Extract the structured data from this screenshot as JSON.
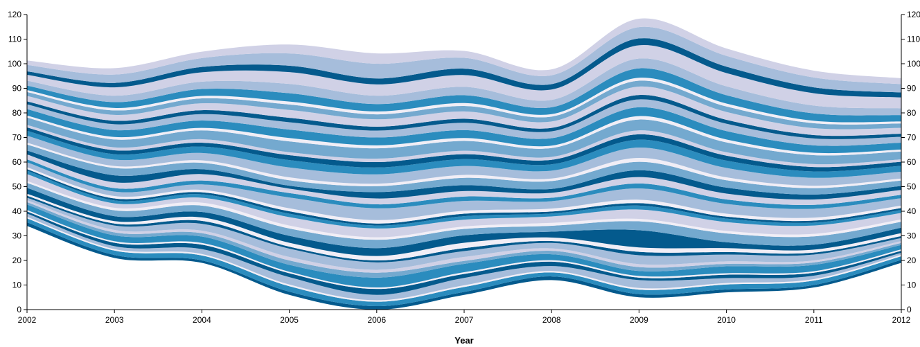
{
  "chart_data": {
    "type": "area",
    "subtype": "streamgraph",
    "title": "",
    "xlabel": "Year",
    "ylabel": "",
    "x": [
      2002,
      2003,
      2004,
      2005,
      2006,
      2007,
      2008,
      2009,
      2010,
      2011,
      2012
    ],
    "xlim": [
      2002,
      2012
    ],
    "ylim": [
      0,
      120
    ],
    "yticks": [
      0,
      10,
      20,
      30,
      40,
      50,
      60,
      70,
      80,
      90,
      100,
      110,
      120
    ],
    "grid": false,
    "legend": "none",
    "baseline": [
      34,
      21,
      19,
      6,
      0,
      6,
      12,
      5,
      7,
      9,
      19
    ],
    "series": [
      {
        "values": [
          1.5,
          1.2,
          1.0,
          1.3,
          1.4,
          1.2,
          1.5,
          1.3,
          1.2,
          1.0,
          1.2
        ],
        "color": "#045a8d"
      },
      {
        "values": [
          1.6,
          1.8,
          2.0,
          2.2,
          1.8,
          2.0,
          1.6,
          1.8,
          2.0,
          1.8,
          1.5
        ],
        "color": "#2b8cbe"
      },
      {
        "values": [
          0.6,
          0.6,
          0.6,
          0.7,
          0.6,
          0.7,
          0.6,
          0.7,
          0.6,
          0.6,
          0.6
        ],
        "color": "#f1eef6"
      },
      {
        "values": [
          1.4,
          1.2,
          2.0,
          3.0,
          2.2,
          3.0,
          2.0,
          3.2,
          2.0,
          1.4,
          0.8
        ],
        "color": "#a6bddb"
      },
      {
        "values": [
          0.8,
          1.4,
          1.8,
          1.6,
          2.4,
          1.6,
          1.8,
          1.0,
          1.4,
          1.2,
          0.8
        ],
        "color": "#045a8d"
      },
      {
        "values": [
          0.6,
          0.6,
          0.7,
          0.6,
          0.6,
          0.7,
          0.6,
          0.7,
          0.6,
          0.6,
          0.6
        ],
        "color": "#f1eef6"
      },
      {
        "values": [
          2.2,
          2.4,
          2.6,
          2.8,
          4.0,
          3.4,
          2.4,
          2.0,
          2.8,
          2.6,
          1.8
        ],
        "color": "#2b8cbe"
      },
      {
        "values": [
          1.0,
          1.2,
          1.4,
          1.8,
          2.0,
          1.2,
          1.4,
          1.6,
          1.0,
          1.0,
          0.8
        ],
        "color": "#74a9cf"
      },
      {
        "values": [
          0.8,
          1.0,
          1.0,
          1.4,
          1.2,
          1.6,
          1.0,
          1.2,
          1.0,
          0.8,
          0.8
        ],
        "color": "#d0d1e6"
      },
      {
        "values": [
          1.0,
          1.8,
          2.8,
          3.4,
          3.0,
          2.4,
          2.2,
          3.6,
          2.8,
          2.4,
          1.2
        ],
        "color": "#a6bddb"
      },
      {
        "values": [
          0.8,
          0.8,
          1.2,
          0.8,
          0.8,
          1.2,
          0.8,
          1.4,
          1.0,
          0.8,
          0.8
        ],
        "color": "#045a8d"
      },
      {
        "values": [
          0.8,
          1.0,
          1.4,
          1.6,
          1.8,
          2.2,
          1.4,
          1.8,
          1.6,
          1.2,
          1.2
        ],
        "color": "#f1eef6"
      },
      {
        "values": [
          2.4,
          2.0,
          2.2,
          2.8,
          3.2,
          3.0,
          2.4,
          7.0,
          2.4,
          2.0,
          2.2
        ],
        "color": "#045a8d"
      },
      {
        "values": [
          2.0,
          2.4,
          2.6,
          3.0,
          3.4,
          2.6,
          2.4,
          3.6,
          3.6,
          3.4,
          2.4
        ],
        "color": "#74a9cf"
      },
      {
        "values": [
          0.8,
          1.0,
          1.2,
          1.2,
          1.0,
          1.0,
          1.2,
          1.0,
          1.0,
          1.0,
          1.0
        ],
        "color": "#f1eef6"
      },
      {
        "values": [
          2.8,
          1.8,
          2.0,
          3.4,
          3.6,
          2.8,
          2.6,
          3.8,
          3.6,
          3.4,
          2.6
        ],
        "color": "#d0d1e6"
      },
      {
        "values": [
          1.4,
          1.2,
          1.4,
          1.4,
          1.2,
          1.4,
          1.2,
          1.6,
          1.4,
          1.2,
          1.2
        ],
        "color": "#2b8cbe"
      },
      {
        "values": [
          0.6,
          0.8,
          0.8,
          1.0,
          0.8,
          1.0,
          0.8,
          1.0,
          0.8,
          0.8,
          0.8
        ],
        "color": "#045a8d"
      },
      {
        "values": [
          0.8,
          1.0,
          1.0,
          1.2,
          1.4,
          1.2,
          1.2,
          1.4,
          1.2,
          1.2,
          1.0
        ],
        "color": "#f1eef6"
      },
      {
        "values": [
          2.0,
          1.8,
          2.2,
          4.4,
          4.8,
          4.0,
          3.0,
          4.6,
          4.0,
          3.6,
          3.0
        ],
        "color": "#a6bddb"
      },
      {
        "values": [
          1.2,
          1.4,
          1.6,
          1.8,
          1.6,
          1.8,
          1.4,
          2.0,
          1.8,
          1.6,
          1.4
        ],
        "color": "#2b8cbe"
      },
      {
        "values": [
          2.0,
          2.4,
          2.6,
          1.8,
          2.4,
          2.2,
          2.0,
          2.6,
          2.4,
          2.2,
          2.0
        ],
        "color": "#d0d1e6"
      },
      {
        "values": [
          1.6,
          2.8,
          2.0,
          1.2,
          2.6,
          2.4,
          1.6,
          2.8,
          2.4,
          2.0,
          1.6
        ],
        "color": "#045a8d"
      },
      {
        "values": [
          2.4,
          3.0,
          2.6,
          2.2,
          2.4,
          3.0,
          3.2,
          3.4,
          3.0,
          2.6,
          2.2
        ],
        "color": "#74a9cf"
      },
      {
        "values": [
          0.8,
          0.8,
          1.0,
          1.2,
          1.0,
          1.2,
          1.0,
          1.6,
          1.2,
          1.0,
          0.8
        ],
        "color": "#f1eef6"
      },
      {
        "values": [
          2.8,
          2.6,
          3.0,
          4.0,
          3.8,
          3.6,
          3.2,
          4.2,
          3.8,
          3.2,
          2.8
        ],
        "color": "#a6bddb"
      },
      {
        "values": [
          2.0,
          2.2,
          2.6,
          3.0,
          2.8,
          2.8,
          2.6,
          3.2,
          3.0,
          2.6,
          2.4
        ],
        "color": "#2b8cbe"
      },
      {
        "values": [
          1.4,
          1.6,
          1.6,
          2.0,
          2.2,
          2.0,
          1.8,
          2.2,
          2.0,
          1.8,
          1.6
        ],
        "color": "#045a8d"
      },
      {
        "values": [
          1.0,
          1.2,
          1.4,
          1.2,
          1.4,
          1.4,
          1.2,
          1.6,
          1.4,
          1.2,
          1.0
        ],
        "color": "#d0d1e6"
      },
      {
        "values": [
          3.0,
          3.2,
          3.6,
          4.4,
          4.2,
          4.0,
          3.6,
          4.4,
          4.0,
          3.6,
          3.2
        ],
        "color": "#74a9cf"
      },
      {
        "values": [
          0.8,
          1.0,
          1.0,
          1.4,
          1.2,
          1.2,
          1.0,
          1.4,
          1.2,
          1.0,
          0.8
        ],
        "color": "#f1eef6"
      },
      {
        "values": [
          2.6,
          2.8,
          3.0,
          3.4,
          3.2,
          3.2,
          3.0,
          3.6,
          3.4,
          3.0,
          2.8
        ],
        "color": "#2b8cbe"
      },
      {
        "values": [
          2.0,
          2.4,
          2.6,
          3.0,
          2.8,
          3.0,
          2.8,
          3.2,
          3.0,
          2.8,
          2.4
        ],
        "color": "#a6bddb"
      },
      {
        "values": [
          1.2,
          1.4,
          1.6,
          1.8,
          1.6,
          1.6,
          1.4,
          1.8,
          1.6,
          1.4,
          1.2
        ],
        "color": "#045a8d"
      },
      {
        "values": [
          2.2,
          2.4,
          2.8,
          3.2,
          3.0,
          3.0,
          2.6,
          3.4,
          3.2,
          2.8,
          2.4
        ],
        "color": "#d0d1e6"
      },
      {
        "values": [
          1.6,
          1.8,
          2.0,
          2.2,
          2.0,
          2.2,
          2.0,
          2.4,
          2.2,
          2.0,
          1.8
        ],
        "color": "#74a9cf"
      },
      {
        "values": [
          0.8,
          1.0,
          1.0,
          1.2,
          1.2,
          1.2,
          1.0,
          1.2,
          1.2,
          1.0,
          0.8
        ],
        "color": "#f1eef6"
      },
      {
        "values": [
          1.8,
          2.4,
          2.8,
          3.4,
          3.0,
          3.2,
          2.8,
          3.8,
          3.4,
          3.0,
          2.6
        ],
        "color": "#2b8cbe"
      },
      {
        "values": [
          2.0,
          2.6,
          3.0,
          3.8,
          3.4,
          3.4,
          3.0,
          4.0,
          3.6,
          3.2,
          2.8
        ],
        "color": "#a6bddb"
      },
      {
        "values": [
          2.4,
          3.4,
          3.8,
          4.8,
          4.6,
          4.8,
          4.2,
          5.4,
          5.4,
          5.0,
          4.4
        ],
        "color": "#d0d1e6"
      },
      {
        "values": [
          1.4,
          1.8,
          2.2,
          2.6,
          2.4,
          2.6,
          2.2,
          2.8,
          2.6,
          2.4,
          2.0
        ],
        "color": "#045a8d"
      },
      {
        "values": [
          2.6,
          3.4,
          3.6,
          5.0,
          6.0,
          4.4,
          3.6,
          4.6,
          4.4,
          4.0,
          3.4
        ],
        "color": "#a6bddb"
      },
      {
        "values": [
          1.8,
          2.6,
          2.6,
          3.6,
          4.2,
          2.8,
          2.4,
          3.4,
          3.0,
          2.8,
          2.4
        ],
        "color": "#d0d1e6"
      }
    ]
  }
}
